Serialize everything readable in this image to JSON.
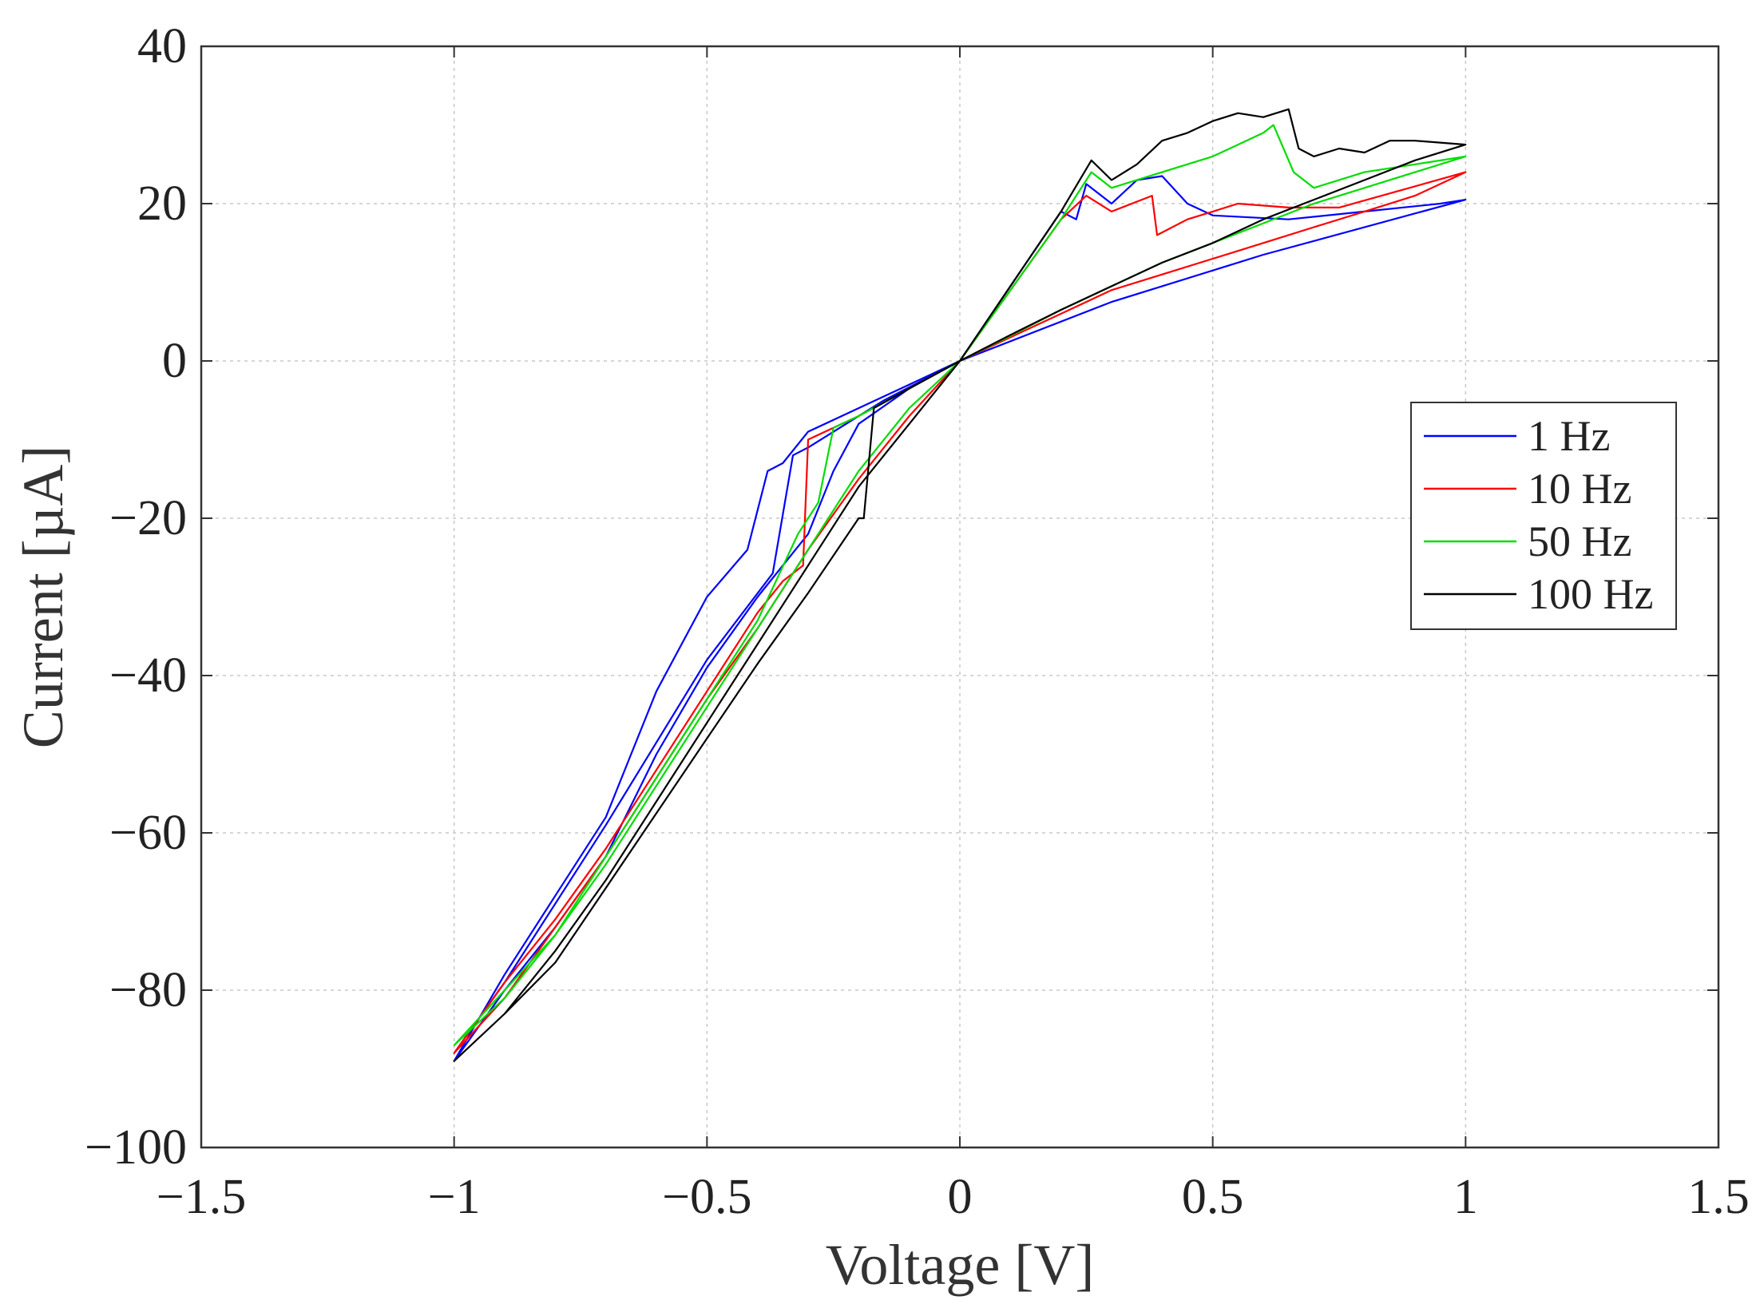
{
  "chart_data": {
    "type": "line",
    "title": "",
    "xlabel": "Voltage  [V]",
    "ylabel": "Current  [µA]",
    "xlim": [
      -1.5,
      1.5
    ],
    "ylim": [
      -100,
      40
    ],
    "xticks": [
      -1.5,
      -1,
      -0.5,
      0,
      0.5,
      1,
      1.5
    ],
    "xtick_labels": [
      "−1.5",
      "−1",
      "−0.5",
      "0",
      "0.5",
      "1",
      "1.5"
    ],
    "yticks": [
      -100,
      -80,
      -60,
      -40,
      -20,
      0,
      20,
      40
    ],
    "ytick_labels": [
      "−100",
      "−80",
      "−60",
      "−40",
      "−20",
      "0",
      "20",
      "40"
    ],
    "grid": true,
    "legend_position": "right",
    "series": [
      {
        "name": "1 Hz",
        "color": "#0000ff",
        "traces": [
          {
            "x": [
              0,
              0.3,
              0.6,
              1.0,
              0.95,
              0.8,
              0.65,
              0.5,
              0.45,
              0.4,
              0.35,
              0.3,
              0.27,
              0.25,
              0.23,
              0.2,
              0.1,
              0
            ],
            "y": [
              0,
              7.5,
              13.5,
              20.5,
              20,
              19,
              18,
              18.5,
              20,
              23.5,
              23,
              20,
              21.5,
              22.5,
              18,
              19,
              9.5,
              0
            ]
          },
          {
            "x": [
              0,
              -0.1,
              -0.2,
              -0.3,
              -0.35,
              -0.38,
              -0.42,
              -0.5,
              -0.6,
              -0.65,
              -0.7,
              -0.8,
              -0.9,
              -1.0,
              -0.9,
              -0.8,
              -0.7,
              -0.6,
              -0.5,
              -0.4,
              -0.3,
              -0.25,
              -0.2,
              -0.1,
              0
            ],
            "y": [
              0,
              -3,
              -6,
              -9,
              -13,
              -14,
              -24,
              -30,
              -42,
              -50,
              -58,
              -68,
              -78,
              -89,
              -80,
              -72,
              -63,
              -50,
              -39,
              -30,
              -22,
              -14,
              -8,
              -3.5,
              0
            ]
          },
          {
            "x": [
              0,
              -0.15,
              -0.3,
              -0.33,
              -0.37,
              -0.5,
              -0.7,
              -0.9,
              -1.0
            ],
            "y": [
              0,
              -5,
              -11,
              -12,
              -27,
              -38,
              -59,
              -79,
              -88
            ]
          }
        ]
      },
      {
        "name": "10 Hz",
        "color": "#ff0000",
        "traces": [
          {
            "x": [
              0,
              0.2,
              0.25,
              0.3,
              0.38,
              0.39,
              0.45,
              0.5,
              0.55,
              0.65,
              0.75,
              1.0,
              0.9,
              0.8,
              0.7,
              0.6,
              0.5,
              0.4,
              0.3,
              0.2,
              0.1,
              0
            ],
            "y": [
              0,
              18,
              21,
              19,
              21,
              16,
              18,
              19,
              20,
              19.5,
              19.5,
              24,
              21,
              19,
              17,
              15,
              13,
              11,
              9,
              6,
              3,
              0
            ]
          },
          {
            "x": [
              0,
              -0.1,
              -0.2,
              -0.3,
              -0.31,
              -0.35,
              -0.4,
              -0.5,
              -0.6,
              -0.7,
              -0.8,
              -0.9,
              -1.0,
              -0.9,
              -0.8,
              -0.7,
              -0.6,
              -0.5,
              -0.4,
              -0.3,
              -0.2,
              -0.1,
              0
            ],
            "y": [
              0,
              -3.5,
              -7,
              -10,
              -26,
              -28,
              -32,
              -42,
              -52,
              -62,
              -71,
              -79,
              -88,
              -81,
              -72,
              -63,
              -53,
              -43,
              -34,
              -24,
              -15,
              -7,
              0
            ]
          }
        ]
      },
      {
        "name": "50 Hz",
        "color": "#00dd00",
        "traces": [
          {
            "x": [
              0,
              0.2,
              0.26,
              0.3,
              0.4,
              0.5,
              0.6,
              0.62,
              0.66,
              0.7,
              0.8,
              0.9,
              1.0,
              0.9,
              0.8,
              0.7,
              0.6,
              0.5,
              0.4,
              0.3,
              0.2,
              0.1,
              0
            ],
            "y": [
              0,
              18,
              24,
              22,
              24,
              26,
              29,
              30,
              24,
              22,
              24,
              25,
              26,
              24,
              22,
              20,
              17.5,
              15,
              12.5,
              9.5,
              6.5,
              3.2,
              0
            ]
          },
          {
            "x": [
              0,
              -0.1,
              -0.2,
              -0.25,
              -0.28,
              -0.32,
              -0.4,
              -0.5,
              -0.6,
              -0.7,
              -0.8,
              -0.9,
              -1.0,
              -0.9,
              -0.8,
              -0.7,
              -0.6,
              -0.5,
              -0.4,
              -0.3,
              -0.2,
              -0.1,
              0
            ],
            "y": [
              0,
              -3.5,
              -7,
              -8.5,
              -18,
              -22,
              -33,
              -43,
              -53,
              -63,
              -73,
              -80,
              -87,
              -81,
              -73,
              -64,
              -54,
              -44,
              -34,
              -24,
              -14,
              -6,
              0
            ]
          }
        ]
      },
      {
        "name": "100 Hz",
        "color": "#000000",
        "traces": [
          {
            "x": [
              0,
              0.1,
              0.2,
              0.26,
              0.3,
              0.35,
              0.4,
              0.45,
              0.5,
              0.55,
              0.6,
              0.65,
              0.67,
              0.7,
              0.75,
              0.8,
              0.85,
              0.9,
              1.0,
              0.9,
              0.8,
              0.7,
              0.6,
              0.5,
              0.4,
              0.3,
              0.2,
              0.1,
              0
            ],
            "y": [
              0,
              9.5,
              19,
              25.5,
              23,
              25,
              28,
              29,
              30.5,
              31.5,
              31,
              32,
              27,
              26,
              27,
              26.5,
              28,
              28,
              27.5,
              25.5,
              23,
              20.5,
              18,
              15,
              12.5,
              9.5,
              6.5,
              3.3,
              0
            ]
          },
          {
            "x": [
              0,
              -0.1,
              -0.17,
              -0.19,
              -0.2,
              -0.3,
              -0.4,
              -0.5,
              -0.6,
              -0.7,
              -0.8,
              -0.9,
              -1.0,
              -0.9,
              -0.8,
              -0.7,
              -0.6,
              -0.5,
              -0.4,
              -0.3,
              -0.2,
              -0.1,
              0
            ],
            "y": [
              0,
              -3.5,
              -6,
              -20,
              -20,
              -29.5,
              -38.5,
              -48,
              -57.5,
              -67,
              -76.5,
              -83,
              -89,
              -83,
              -75,
              -66,
              -56,
              -46,
              -36,
              -26,
              -16,
              -8,
              0
            ]
          }
        ]
      }
    ]
  }
}
